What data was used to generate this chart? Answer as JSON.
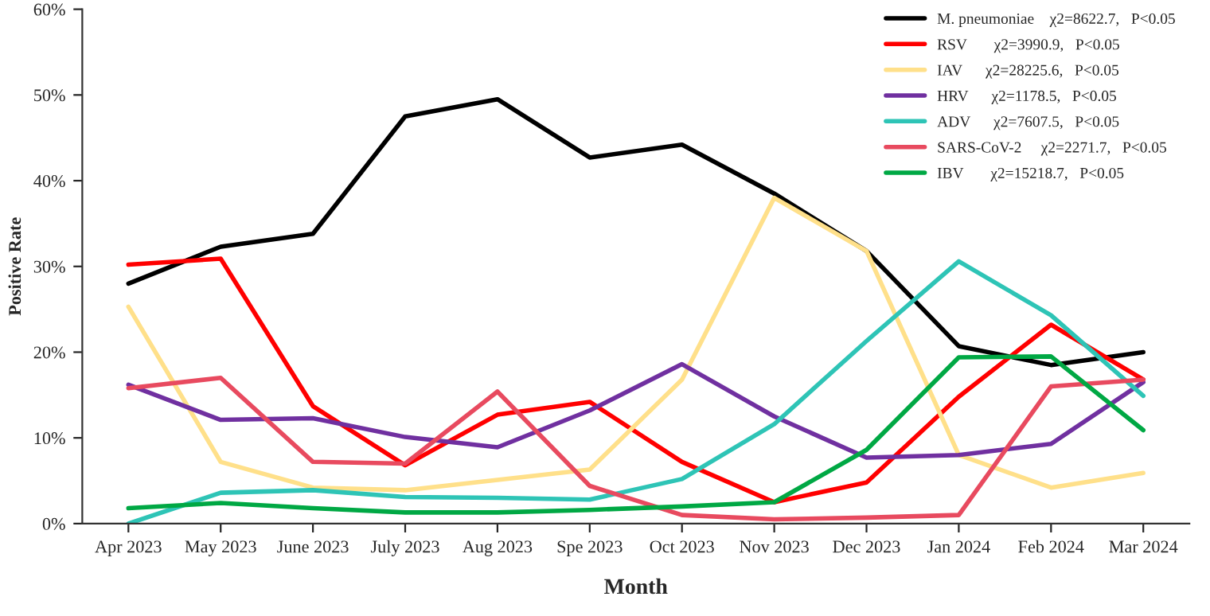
{
  "chart_data": {
    "type": "line",
    "xlabel": "Month",
    "ylabel": "Positive Rate",
    "categories": [
      "Apr 2023",
      "May 2023",
      "June 2023",
      "July 2023",
      "Aug 2023",
      "Spe 2023",
      "Oct 2023",
      "Nov 2023",
      "Dec 2023",
      "Jan 2024",
      "Feb 2024",
      "Mar 2024"
    ],
    "series": [
      {
        "name": "M. pneumoniae    χ2=8622.7,   P<0.05",
        "color": "#000000",
        "values": [
          28.0,
          32.3,
          33.8,
          47.5,
          49.5,
          42.7,
          44.2,
          38.5,
          31.8,
          20.7,
          18.5,
          20.0
        ]
      },
      {
        "name": "RSV       χ2=3990.9,   P<0.05",
        "color": "#ff0000",
        "values": [
          30.2,
          30.9,
          13.7,
          6.8,
          12.7,
          14.2,
          7.2,
          2.5,
          4.8,
          14.8,
          23.2,
          16.8
        ]
      },
      {
        "name": "IAV      χ2=28225.6,   P<0.05",
        "color": "#ffe08a",
        "values": [
          25.3,
          7.2,
          4.2,
          3.9,
          5.1,
          6.3,
          16.8,
          38.0,
          31.8,
          8.0,
          4.2,
          5.9
        ]
      },
      {
        "name": "HRV      χ2=1178.5,   P<0.05",
        "color": "#7030a0",
        "values": [
          16.2,
          12.1,
          12.3,
          10.1,
          8.9,
          13.2,
          18.6,
          12.5,
          7.7,
          8.0,
          9.3,
          16.5
        ]
      },
      {
        "name": "ADV      χ2=7607.5,   P<0.05",
        "color": "#2ec4b6",
        "values": [
          0,
          3.6,
          3.9,
          3.1,
          3.0,
          2.8,
          5.2,
          11.6,
          21.3,
          30.6,
          24.3,
          14.9
        ]
      },
      {
        "name": "SARS-CoV-2     χ2=2271.7,   P<0.05",
        "color": "#e84a5f",
        "values": [
          15.8,
          17.0,
          7.2,
          7.0,
          15.4,
          4.4,
          1.0,
          0.5,
          0.7,
          1.0,
          16.0,
          16.8
        ]
      },
      {
        "name": "IBV       χ2=15218.7,   P<0.05",
        "color": "#00a844",
        "values": [
          1.8,
          2.4,
          1.8,
          1.3,
          1.3,
          1.6,
          2.0,
          2.5,
          8.6,
          19.4,
          19.5,
          10.9
        ]
      }
    ],
    "ylim": [
      0,
      60
    ],
    "yticks": [
      {
        "value": 0,
        "label": "0%"
      },
      {
        "value": 10,
        "label": "10%"
      },
      {
        "value": 20,
        "label": "20%"
      },
      {
        "value": 30,
        "label": "30%"
      },
      {
        "value": 40,
        "label": "40%"
      },
      {
        "value": 50,
        "label": "50%"
      },
      {
        "value": 60,
        "label": "60%"
      }
    ],
    "grid": false,
    "legend": "top right",
    "marker": "none",
    "line_style": "solid"
  }
}
